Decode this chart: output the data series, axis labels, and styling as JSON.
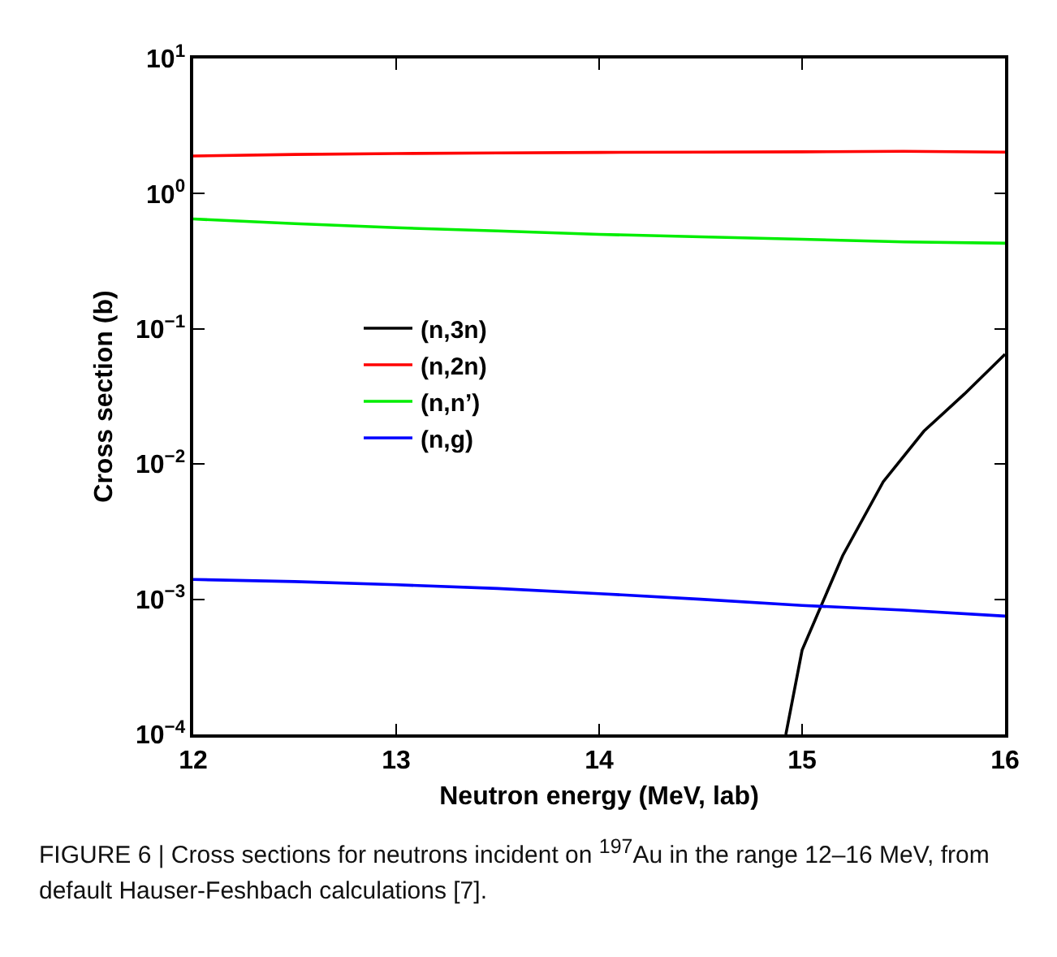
{
  "chart_data": {
    "type": "line",
    "xlabel": "Neutron energy (MeV, lab)",
    "ylabel": "Cross section (b)",
    "log": "y",
    "grid": false,
    "legend": "left",
    "marker": "none",
    "line_style": "solid",
    "xlim": [
      12,
      16
    ],
    "xticks": [
      12,
      13,
      14,
      15,
      16
    ],
    "ylim": [
      0.0001,
      10
    ],
    "yticks": [
      {
        "value": 0.0001,
        "label": "10$^{−4}$"
      },
      {
        "value": 0.001,
        "label": "10$^{−3}$"
      },
      {
        "value": 0.01,
        "label": "10$^{−2}$"
      },
      {
        "value": 0.1,
        "label": "10$^{−1}$"
      },
      {
        "value": 1,
        "label": "10$^{0}$"
      },
      {
        "value": 10,
        "label": "10$^{1}$"
      }
    ],
    "series": [
      {
        "name": "(n,3n)",
        "color": "#000000",
        "x": [
          14.92,
          15.0,
          15.2,
          15.4,
          15.6,
          15.8,
          16.0
        ],
        "values": [
          0.0001,
          0.00042,
          0.0021,
          0.0074,
          0.0175,
          0.033,
          0.065
        ]
      },
      {
        "name": "(n,2n)",
        "color": "#ff0000",
        "x": [
          12,
          12.5,
          13,
          13.5,
          14,
          14.5,
          15,
          15.5,
          16
        ],
        "values": [
          1.9,
          1.95,
          1.98,
          2.0,
          2.02,
          2.03,
          2.04,
          2.06,
          2.03
        ]
      },
      {
        "name": "(n,n’)",
        "color": "#00ee00",
        "x": [
          12,
          12.5,
          13,
          13.5,
          14,
          14.5,
          15,
          15.5,
          16
        ],
        "values": [
          0.65,
          0.6,
          0.56,
          0.53,
          0.5,
          0.48,
          0.46,
          0.44,
          0.43
        ]
      },
      {
        "name": "(n,g)",
        "color": "#0000ff",
        "x": [
          12,
          12.5,
          13,
          13.5,
          14,
          14.5,
          15,
          15.5,
          16
        ],
        "values": [
          0.0014,
          0.00135,
          0.00128,
          0.0012,
          0.0011,
          0.001,
          0.0009,
          0.00083,
          0.00075
        ]
      }
    ],
    "annotations": [
      "FIGURE 6 | Cross sections for neutrons incident on $^{197}$Au in the range 12–16 MeV, from default Hauser-Feshbach calculations [7]."
    ]
  }
}
